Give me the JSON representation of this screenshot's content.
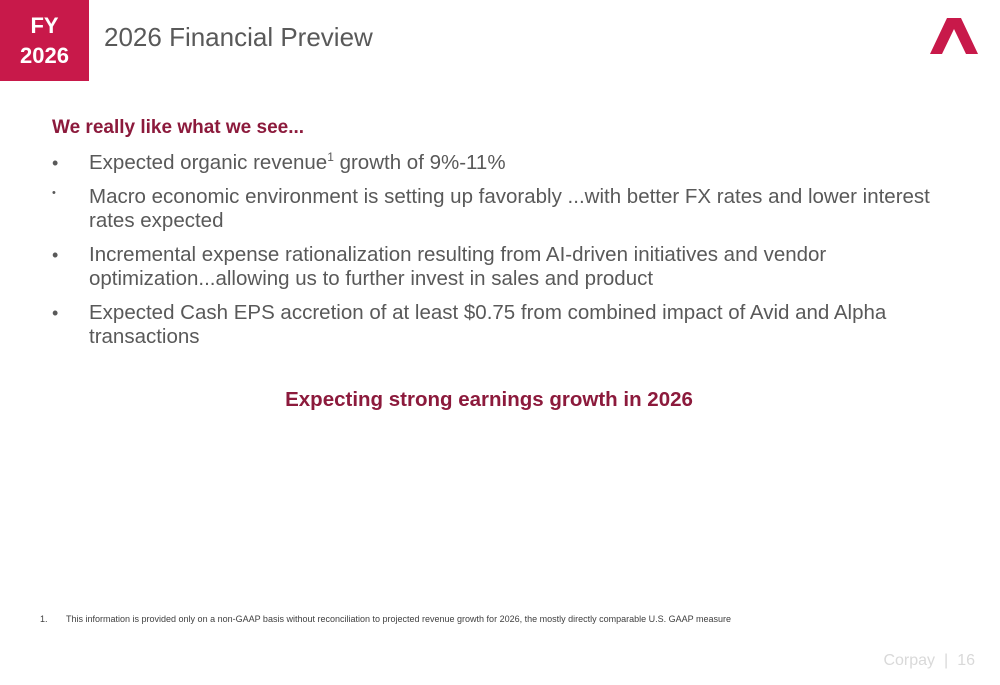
{
  "badge": {
    "line1": "FY",
    "line2": "2026"
  },
  "header": {
    "title": "2026 Financial Preview",
    "logo_icon": "corpay-logo-icon",
    "accent_color": "#c8194a"
  },
  "content": {
    "subtitle": "We really like what we see...",
    "bullets": [
      {
        "marker": "•",
        "text_before": "Expected organic revenue",
        "superscript": "1",
        "text_after": " growth of 9%-11%"
      },
      {
        "marker": "•",
        "text": "Macro economic environment is setting up favorably ...with better FX rates and lower interest rates expected"
      },
      {
        "marker": "•",
        "text": "Incremental expense rationalization resulting from AI-driven initiatives and vendor optimization...allowing us to further invest in sales and product"
      },
      {
        "marker": "•",
        "text": "Expected Cash EPS accretion of at least $0.75 from combined impact of Avid and Alpha transactions"
      }
    ],
    "tagline": "Expecting strong earnings growth in 2026",
    "headline_color": "#8c1a3c"
  },
  "footnote": {
    "number": "1.",
    "text": "This information is provided only on a non-GAAP basis without reconciliation to projected revenue growth for 2026, the mostly directly comparable U.S. GAAP measure"
  },
  "footer": {
    "brand": "Corpay",
    "separator": "|",
    "page_number": "16"
  }
}
